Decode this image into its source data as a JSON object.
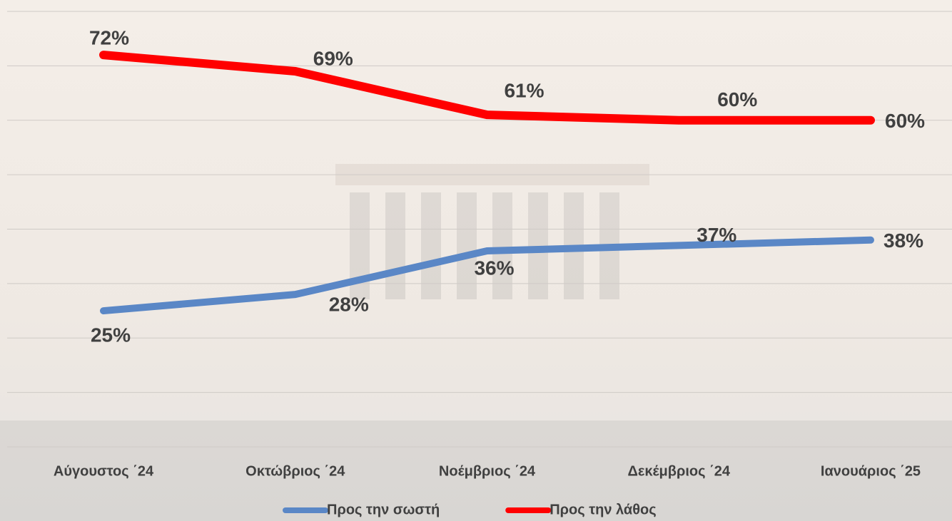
{
  "chart_data": {
    "type": "line",
    "categories": [
      "Αύγουστος ΄24",
      "Οκτώβριος ΄24",
      "Νοέμβριος ΄24",
      "Δεκέμβριος ΄24",
      "Ιανουάριος ΄25"
    ],
    "series": [
      {
        "name": "Προς την σωστή",
        "color": "#5a87c6",
        "values": [
          25,
          28,
          36,
          37,
          38
        ],
        "value_labels": [
          "25%",
          "28%",
          "36%",
          "37%",
          "38%"
        ]
      },
      {
        "name": "Προς την λάθος",
        "color": "#ff0000",
        "values": [
          72,
          69,
          61,
          60,
          60
        ],
        "value_labels": [
          "72%",
          "69%",
          "61%",
          "60%",
          "60%"
        ]
      }
    ],
    "ylim": [
      0,
      80
    ],
    "grid_lines": [
      0,
      10,
      20,
      30,
      40,
      50,
      60,
      70,
      80
    ],
    "grid": true,
    "legend": "bottom"
  }
}
